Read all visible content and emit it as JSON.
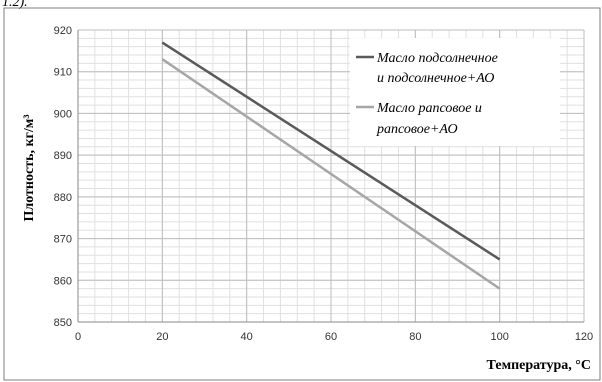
{
  "header_fragment": "1.2).",
  "chart_data": {
    "type": "line",
    "title": "",
    "xlabel": "Температура, °С",
    "ylabel": "Плотность, кг/м³",
    "xlim": [
      0,
      120
    ],
    "ylim": [
      850,
      920
    ],
    "x_ticks": [
      0,
      20,
      40,
      60,
      80,
      100,
      120
    ],
    "y_ticks": [
      850,
      860,
      870,
      880,
      890,
      900,
      910,
      920
    ],
    "grid": true,
    "legend_position": "top-right",
    "series": [
      {
        "name_lines": [
          "Масло подсолнечное",
          "и подсолнечное+АО"
        ],
        "color": "#5a5a5a",
        "x": [
          20,
          100
        ],
        "y": [
          917,
          865
        ]
      },
      {
        "name_lines": [
          "Масло рапсовое и",
          "рапсовое+АО"
        ],
        "color": "#a6a6a6",
        "x": [
          20,
          100
        ],
        "y": [
          913,
          858
        ]
      }
    ]
  }
}
